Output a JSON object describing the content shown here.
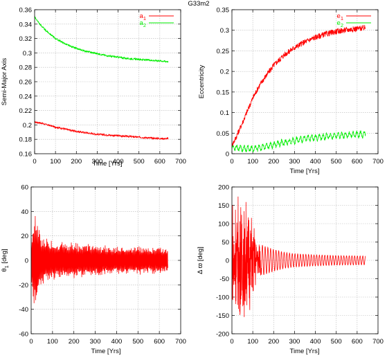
{
  "figure_title": "G33m2",
  "colors": {
    "red": "#ff0000",
    "green": "#00ee00",
    "grid": "#b8b8b8",
    "frame": "#000000"
  },
  "chart_data": [
    {
      "id": "semi-major-axis",
      "type": "line",
      "title": "",
      "xlabel": "Time [Yrs]",
      "ylabel": "Semi-Major Axis",
      "xlim": [
        0,
        700
      ],
      "ylim": [
        0.16,
        0.36
      ],
      "xticks": [
        "0",
        "100",
        "200",
        "300",
        "400",
        "500",
        "600",
        "700"
      ],
      "yticks": [
        "0.16",
        "0.18",
        "0.2",
        "0.22",
        "0.24",
        "0.26",
        "0.28",
        "0.3",
        "0.32",
        "0.34",
        "0.36"
      ],
      "grid": true,
      "legend": "top-right",
      "series": [
        {
          "name": "a",
          "sub": "1",
          "color": "#ff0000",
          "x": [
            0,
            25,
            50,
            100,
            150,
            200,
            250,
            300,
            350,
            400,
            450,
            500,
            550,
            600,
            640
          ],
          "y": [
            0.204,
            0.203,
            0.201,
            0.197,
            0.194,
            0.191,
            0.189,
            0.187,
            0.186,
            0.185,
            0.184,
            0.183,
            0.182,
            0.181,
            0.181
          ]
        },
        {
          "name": "a",
          "sub": "2",
          "color": "#00ee00",
          "x": [
            0,
            25,
            50,
            100,
            150,
            200,
            250,
            300,
            350,
            400,
            450,
            500,
            550,
            600,
            640
          ],
          "y": [
            0.35,
            0.34,
            0.332,
            0.32,
            0.312,
            0.306,
            0.302,
            0.299,
            0.296,
            0.294,
            0.292,
            0.291,
            0.29,
            0.289,
            0.288
          ]
        }
      ]
    },
    {
      "id": "eccentricity",
      "type": "line",
      "title": "",
      "xlabel": "Time [Yrs]",
      "ylabel": "Eccentricity",
      "xlim": [
        0,
        700
      ],
      "ylim": [
        0,
        0.35
      ],
      "xticks": [
        "0",
        "100",
        "200",
        "300",
        "400",
        "500",
        "600",
        "700"
      ],
      "yticks": [
        "0",
        "0.05",
        "0.1",
        "0.15",
        "0.2",
        "0.25",
        "0.3",
        "0.35"
      ],
      "grid": true,
      "legend": "top-right",
      "series": [
        {
          "name": "e",
          "sub": "1",
          "color": "#ff0000",
          "x": [
            0,
            20,
            50,
            75,
            100,
            125,
            150,
            200,
            250,
            300,
            350,
            400,
            450,
            500,
            550,
            600,
            640
          ],
          "y": [
            0.02,
            0.04,
            0.075,
            0.105,
            0.135,
            0.16,
            0.18,
            0.215,
            0.24,
            0.258,
            0.272,
            0.283,
            0.291,
            0.297,
            0.301,
            0.304,
            0.306
          ]
        },
        {
          "name": "e",
          "sub": "2",
          "color": "#00ee00",
          "x": [
            0,
            50,
            100,
            150,
            200,
            250,
            300,
            350,
            400,
            450,
            500,
            550,
            600,
            640
          ],
          "y": [
            0.015,
            0.013,
            0.012,
            0.016,
            0.022,
            0.027,
            0.032,
            0.036,
            0.039,
            0.042,
            0.044,
            0.046,
            0.047,
            0.047
          ]
        }
      ]
    },
    {
      "id": "theta1",
      "type": "line",
      "title": "",
      "xlabel": "Time [Yrs]",
      "ylabel": "θ",
      "ylabel_sub": "1",
      "ylabel_unit": "[deg]",
      "xlim": [
        0,
        700
      ],
      "ylim": [
        -60,
        60
      ],
      "xticks": [
        "0",
        "100",
        "200",
        "300",
        "400",
        "500",
        "600",
        "700"
      ],
      "yticks": [
        "-60",
        "-40",
        "-20",
        "0",
        "20",
        "40",
        "60"
      ],
      "grid": true,
      "series": [
        {
          "color": "#ff0000",
          "envelope_x": [
            0,
            10,
            20,
            30,
            50,
            80,
            120,
            200,
            300,
            400,
            500,
            600,
            640
          ],
          "envelope_amp": [
            20,
            35,
            45,
            30,
            22,
            18,
            16,
            15,
            13,
            12,
            12,
            11,
            11
          ]
        }
      ]
    },
    {
      "id": "delta-varpi",
      "type": "line",
      "title": "",
      "xlabel": "Time [Yrs]",
      "ylabel": "Δ ϖ",
      "ylabel_unit": "[deg]",
      "xlim": [
        0,
        700
      ],
      "ylim": [
        -200,
        200
      ],
      "xticks": [
        "0",
        "100",
        "200",
        "300",
        "400",
        "500",
        "600",
        "700"
      ],
      "yticks": [
        "-200",
        "-150",
        "-100",
        "-50",
        "0",
        "50",
        "100",
        "150",
        "200"
      ],
      "grid": true,
      "series": [
        {
          "color": "#ff0000",
          "envelope_x": [
            0,
            20,
            50,
            80,
            100,
            120,
            150,
            200,
            250,
            300,
            400,
            500,
            640
          ],
          "envelope_amp": [
            160,
            165,
            165,
            150,
            100,
            55,
            40,
            30,
            22,
            18,
            15,
            13,
            12
          ]
        }
      ]
    }
  ]
}
